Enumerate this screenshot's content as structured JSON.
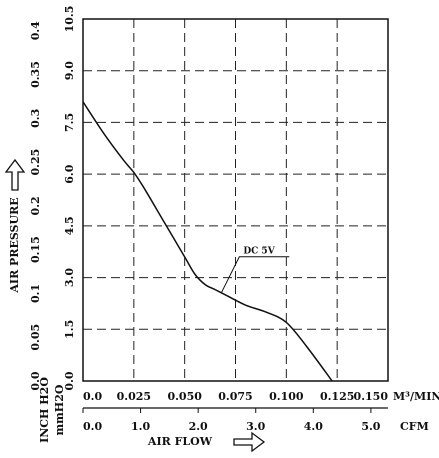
{
  "chart_data": {
    "type": "line",
    "xlabel": "AIR FLOW",
    "ylabel": "AIR PRESSURE",
    "x_unit": "M³/MIN.",
    "x2_unit": "CFM",
    "y_unit": "mmH2O",
    "y2_unit": "INCH H2O",
    "xlim": [
      0,
      0.15
    ],
    "xticks": [
      {
        "value": 0,
        "label": "0.0"
      },
      0.025,
      {
        "value": 0.05,
        "label": "0.050"
      },
      0.075,
      {
        "value": 0.1,
        "label": "0.100"
      },
      0.125,
      {
        "value": 0.15,
        "label": "0.150"
      }
    ],
    "x2lim": [
      0,
      5.297
    ],
    "x2ticks": [
      {
        "value": 0,
        "label": "0.0"
      },
      {
        "value": 1,
        "label": "1.0"
      },
      {
        "value": 2,
        "label": "2.0"
      },
      {
        "value": 3,
        "label": "3.0"
      },
      {
        "value": 4,
        "label": "4.0"
      },
      {
        "value": 5,
        "label": "5.0"
      }
    ],
    "ylim": [
      0,
      10.5
    ],
    "yticks": [
      {
        "value": 0,
        "label": "0.0"
      },
      1.5,
      {
        "value": 3,
        "label": "3.0"
      },
      4.5,
      {
        "value": 6,
        "label": "6.0"
      },
      7.5,
      {
        "value": 9,
        "label": "9.0"
      },
      10.5
    ],
    "y2lim": [
      0,
      0.4134
    ],
    "y2ticks": [
      {
        "value": 0,
        "label": "0.0"
      },
      0.05,
      0.1,
      0.15,
      0.2,
      0.25,
      0.3,
      0.35,
      0.4
    ],
    "grid": true,
    "series": [
      {
        "name": "DC 5V",
        "color": "#111111",
        "x": [
          0,
          0.01,
          0.02,
          0.025,
          0.03,
          0.04,
          0.05,
          0.055,
          0.06,
          0.065,
          0.07,
          0.08,
          0.09,
          0.1,
          0.11,
          0.1225
        ],
        "values": [
          8.1,
          7.2,
          6.4,
          6.05,
          5.6,
          4.6,
          3.6,
          3.1,
          2.8,
          2.65,
          2.5,
          2.2,
          2.0,
          1.7,
          1.0,
          0
        ]
      }
    ]
  }
}
